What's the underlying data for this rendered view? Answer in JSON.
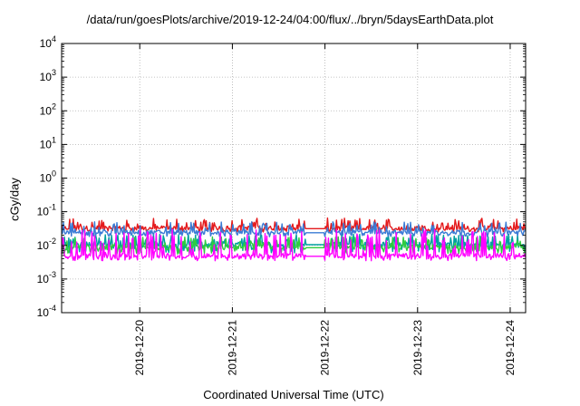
{
  "chart_data": {
    "type": "line",
    "title": "/data/run/goesPlots/archive/2019-12-24/04:00/flux/../bryn/5daysEarthData.plot",
    "xlabel": "Coordinated Universal Time (UTC)",
    "ylabel": "cGy/day",
    "yscale": "log",
    "ylim": [
      0.0001,
      10000
    ],
    "xlim": [
      "2019-12-19T03:45",
      "2019-12-24T04:00"
    ],
    "grid": true,
    "legend": "none",
    "y_ticks": [
      {
        "mantissa": "10",
        "exp": "-4"
      },
      {
        "mantissa": "10",
        "exp": "-3"
      },
      {
        "mantissa": "10",
        "exp": "-2"
      },
      {
        "mantissa": "10",
        "exp": "-1"
      },
      {
        "mantissa": "10",
        "exp": "0"
      },
      {
        "mantissa": "10",
        "exp": "1"
      },
      {
        "mantissa": "10",
        "exp": "2"
      },
      {
        "mantissa": "10",
        "exp": "3"
      },
      {
        "mantissa": "10",
        "exp": "4"
      }
    ],
    "x_ticks": [
      "2019-12-20",
      "2019-12-21",
      "2019-12-22",
      "2019-12-23",
      "2019-12-24"
    ],
    "data_gap": [
      "2019-12-21T19:00",
      "2019-12-21T23:55"
    ],
    "series": [
      {
        "color": "#e41a1c",
        "base": 0.033,
        "spike_max": 0.065,
        "dip_min": 0.025
      },
      {
        "color": "#00a0a0",
        "base": 0.011,
        "spike_max": 0.022,
        "dip_min": 0.006
      },
      {
        "color": "#2ecc40",
        "base": 0.009,
        "spike_max": 0.018,
        "dip_min": 0.0055
      },
      {
        "color": "#3a7bd5",
        "base": 0.025,
        "spike_max": 0.05,
        "dip_min": 0.018
      },
      {
        "color": "#ff00ff",
        "base": 0.005,
        "spike_max": 0.03,
        "dip_min": 0.0035
      }
    ]
  }
}
